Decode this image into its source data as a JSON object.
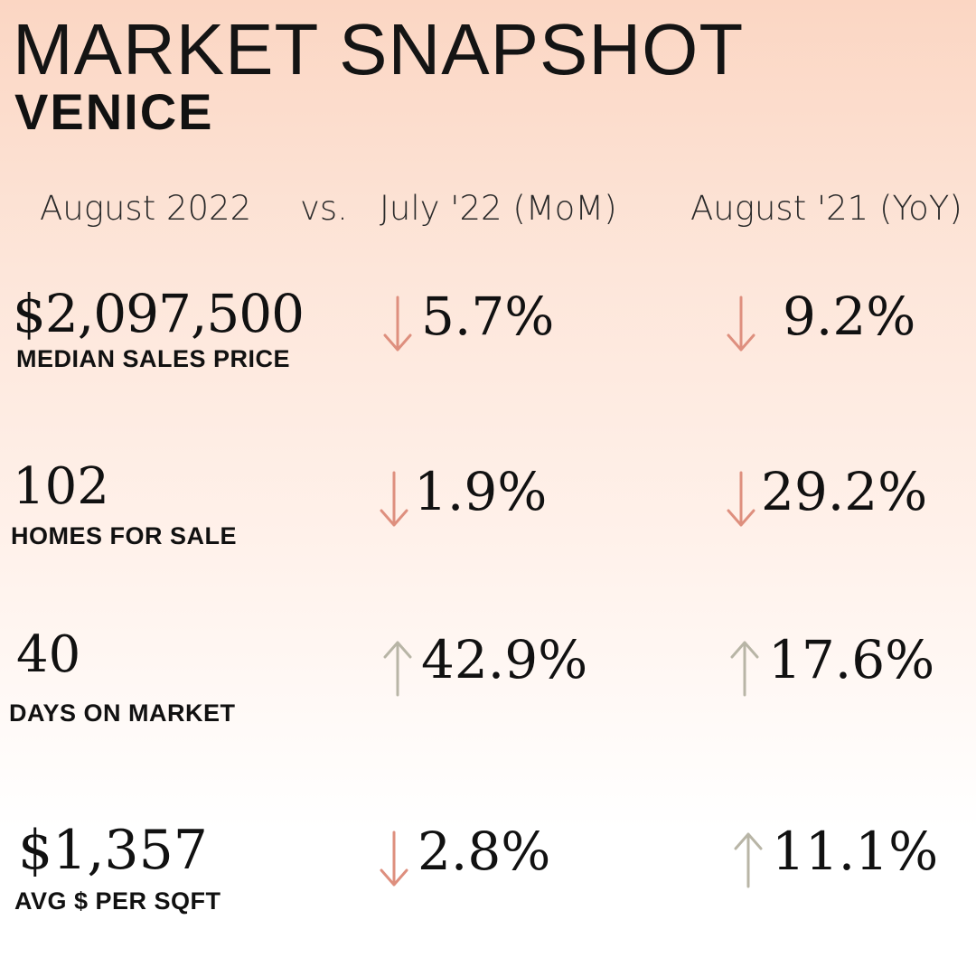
{
  "header": {
    "title": "MARKET SNAPSHOT",
    "subtitle": "VENICE"
  },
  "columns": {
    "current": "August 2022",
    "vs": "vs.",
    "mom": "July '22 (MoM)",
    "yoy": "August '21 (YoY)"
  },
  "colors": {
    "down_arrow": "#de8f7e",
    "up_arrow": "#b8b5a6",
    "gradient_top": "#fbd6c3",
    "gradient_bottom": "#ffffff"
  },
  "metrics": [
    {
      "value": "$2,097,500",
      "label": "MEDIAN SALES PRICE",
      "mom": {
        "direction": "down",
        "icon": "arrow-down-icon",
        "value": "5.7%"
      },
      "yoy": {
        "direction": "down",
        "icon": "arrow-down-icon",
        "value": "9.2%"
      }
    },
    {
      "value": "102",
      "label": "HOMES FOR SALE",
      "mom": {
        "direction": "down",
        "icon": "arrow-down-icon",
        "value": "1.9%"
      },
      "yoy": {
        "direction": "down",
        "icon": "arrow-down-icon",
        "value": "29.2%"
      }
    },
    {
      "value": "40",
      "label": "DAYS ON MARKET",
      "mom": {
        "direction": "up",
        "icon": "arrow-up-icon",
        "value": "42.9%"
      },
      "yoy": {
        "direction": "up",
        "icon": "arrow-up-icon",
        "value": "17.6%"
      }
    },
    {
      "value": "$1,357",
      "label": "AVG $ PER SQFT",
      "mom": {
        "direction": "down",
        "icon": "arrow-down-icon",
        "value": "2.8%"
      },
      "yoy": {
        "direction": "up",
        "icon": "arrow-up-icon",
        "value": "11.1%"
      }
    }
  ]
}
